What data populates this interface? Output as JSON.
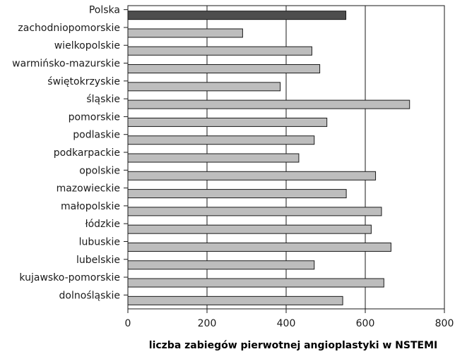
{
  "chart_data": {
    "type": "bar",
    "orientation": "horizontal",
    "categories": [
      "Polska",
      "zachodniopomorskie",
      "wielkopolskie",
      "warmińsko-mazurskie",
      "świętokrzyskie",
      "śląskie",
      "pomorskie",
      "podlaskie",
      "podkarpackie",
      "opolskie",
      "mazowieckie",
      "małopolskie",
      "łódzkie",
      "lubuskie",
      "lubelskie",
      "kujawsko-pomorskie",
      "dolnośląskie"
    ],
    "values": [
      551,
      290,
      465,
      485,
      385,
      712,
      503,
      471,
      432,
      626,
      552,
      641,
      615,
      665,
      471,
      647,
      543
    ],
    "highlight_index": 0,
    "colors": {
      "bar": "#bdbdbd",
      "highlight": "#4d4d4d",
      "stroke": "#1a1a1a",
      "grid": "#1a1a1a"
    },
    "xlabel": "liczba zabiegów pierwotnej angioplastyki w NSTEMI",
    "xlim": [
      0,
      800
    ],
    "xticks": [
      "0",
      "200",
      "400",
      "600",
      "800"
    ],
    "xtick_values": [
      0,
      200,
      400,
      600,
      800
    ],
    "grid": {
      "vertical": true,
      "horizontal": false
    }
  }
}
